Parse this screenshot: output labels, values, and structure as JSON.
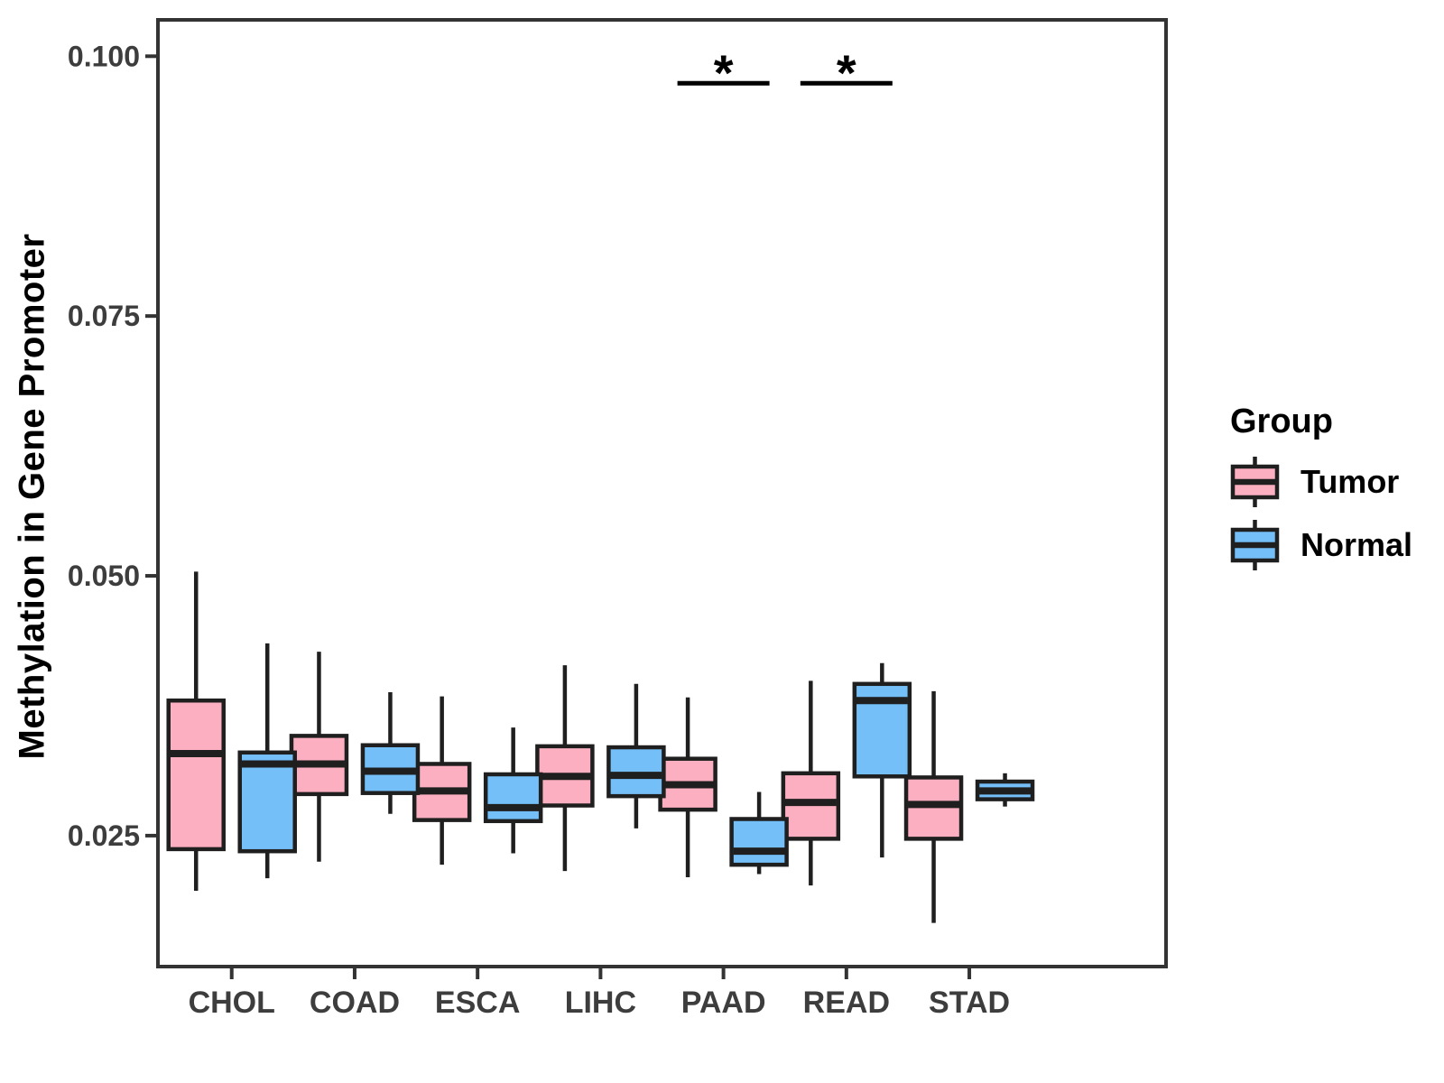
{
  "chart_data": {
    "type": "boxplot",
    "title": "",
    "xlabel": "",
    "ylabel": "Methylation in Gene Promoter",
    "legend_title": "Group",
    "legend_position": "right",
    "grid": false,
    "categories": [
      "CHOL",
      "COAD",
      "ESCA",
      "LIHC",
      "PAAD",
      "READ",
      "STAD"
    ],
    "ylim": [
      0.0124,
      0.1035
    ],
    "yticks": [
      {
        "value": 0.025,
        "label": "0.025"
      },
      {
        "value": 0.05,
        "label": "0.050"
      },
      {
        "value": 0.075,
        "label": "0.075"
      },
      {
        "value": 0.1,
        "label": "0.100"
      }
    ],
    "series": [
      {
        "name": "Tumor",
        "color": "#FCAFC1",
        "boxes": [
          {
            "category": "CHOL",
            "whisker_low": 0.0197,
            "q1": 0.0237,
            "median": 0.0329,
            "q3": 0.038,
            "whisker_high": 0.0504
          },
          {
            "category": "COAD",
            "whisker_low": 0.0225,
            "q1": 0.029,
            "median": 0.0319,
            "q3": 0.0346,
            "whisker_high": 0.0427
          },
          {
            "category": "ESCA",
            "whisker_low": 0.0222,
            "q1": 0.0265,
            "median": 0.0293,
            "q3": 0.0319,
            "whisker_high": 0.0384
          },
          {
            "category": "LIHC",
            "whisker_low": 0.0216,
            "q1": 0.0279,
            "median": 0.0307,
            "q3": 0.0336,
            "whisker_high": 0.0414
          },
          {
            "category": "PAAD",
            "whisker_low": 0.021,
            "q1": 0.0275,
            "median": 0.0299,
            "q3": 0.0324,
            "whisker_high": 0.0383
          },
          {
            "category": "READ",
            "whisker_low": 0.0202,
            "q1": 0.0247,
            "median": 0.0282,
            "q3": 0.031,
            "whisker_high": 0.0399
          },
          {
            "category": "STAD",
            "whisker_low": 0.0166,
            "q1": 0.0247,
            "median": 0.028,
            "q3": 0.0306,
            "whisker_high": 0.0389
          }
        ]
      },
      {
        "name": "Normal",
        "color": "#74BFF8",
        "boxes": [
          {
            "category": "CHOL",
            "whisker_low": 0.0209,
            "q1": 0.0235,
            "median": 0.0319,
            "q3": 0.033,
            "whisker_high": 0.0435
          },
          {
            "category": "COAD",
            "whisker_low": 0.0271,
            "q1": 0.0291,
            "median": 0.0312,
            "q3": 0.0337,
            "whisker_high": 0.0388
          },
          {
            "category": "ESCA",
            "whisker_low": 0.0233,
            "q1": 0.0264,
            "median": 0.0277,
            "q3": 0.0309,
            "whisker_high": 0.0354
          },
          {
            "category": "LIHC",
            "whisker_low": 0.0257,
            "q1": 0.0288,
            "median": 0.0308,
            "q3": 0.0335,
            "whisker_high": 0.0396
          },
          {
            "category": "PAAD",
            "whisker_low": 0.0213,
            "q1": 0.0222,
            "median": 0.0235,
            "q3": 0.0266,
            "whisker_high": 0.0292
          },
          {
            "category": "READ",
            "whisker_low": 0.0229,
            "q1": 0.0307,
            "median": 0.038,
            "q3": 0.0396,
            "whisker_high": 0.0416
          },
          {
            "category": "STAD",
            "whisker_low": 0.0278,
            "q1": 0.0285,
            "median": 0.0293,
            "q3": 0.0302,
            "whisker_high": 0.031
          }
        ]
      }
    ],
    "significance": [
      {
        "category": "PAAD",
        "label": "*",
        "bar_y": 0.0974
      },
      {
        "category": "READ",
        "label": "*",
        "bar_y": 0.0974
      }
    ]
  }
}
